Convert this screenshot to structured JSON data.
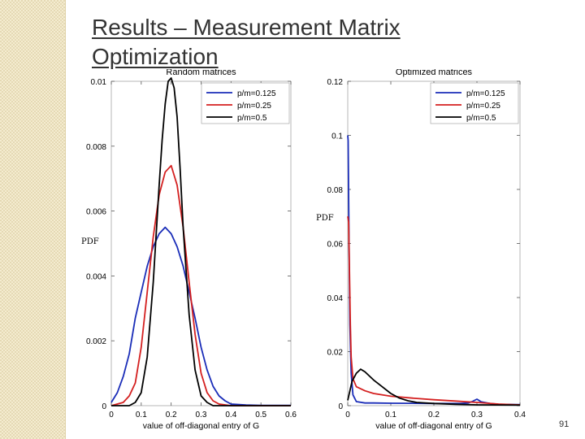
{
  "slide": {
    "title_line1": "Results – Measurement Matrix",
    "title_line2": "Optimization",
    "page_number": "91",
    "pdf_label_left": "PDF",
    "pdf_label_right": "PDF",
    "colors": {
      "sidebar": "#f4ecd0",
      "title": "#333333"
    }
  },
  "chart_data": [
    {
      "type": "line",
      "title": "Random matrices",
      "xlabel": "value of off-diagonal entry of G",
      "ylabel": "PDF",
      "xlim": [
        0,
        0.6
      ],
      "ylim": [
        0,
        0.01
      ],
      "xticks": [
        0,
        0.1,
        0.2,
        0.3,
        0.4,
        0.5,
        0.6
      ],
      "xtick_labels": [
        "0",
        "0.1",
        "0.2",
        "0.3",
        "0.4",
        "0.5",
        "0.6"
      ],
      "yticks": [
        0,
        0.002,
        0.004,
        0.006,
        0.008,
        0.01
      ],
      "ytick_labels": [
        "0",
        "0.002",
        "0.004",
        "0.006",
        "0.008",
        "0.01"
      ],
      "legend_position": "top-right",
      "series": [
        {
          "name": "p/m=0.125",
          "color": "#1a2db8",
          "x": [
            0,
            0.02,
            0.04,
            0.06,
            0.08,
            0.1,
            0.12,
            0.14,
            0.16,
            0.18,
            0.2,
            0.22,
            0.24,
            0.26,
            0.28,
            0.3,
            0.32,
            0.34,
            0.36,
            0.38,
            0.4,
            0.45,
            0.5,
            0.6
          ],
          "y": [
            0.0001,
            0.0004,
            0.0009,
            0.0016,
            0.0027,
            0.0035,
            0.0043,
            0.0049,
            0.0053,
            0.0055,
            0.0053,
            0.0049,
            0.0043,
            0.0035,
            0.0027,
            0.0018,
            0.0011,
            0.0006,
            0.0003,
            0.00015,
            5e-05,
            2e-05,
            1e-05,
            1e-05
          ]
        },
        {
          "name": "p/m=0.25",
          "color": "#d42020",
          "x": [
            0,
            0.04,
            0.06,
            0.08,
            0.1,
            0.12,
            0.14,
            0.16,
            0.18,
            0.2,
            0.22,
            0.24,
            0.26,
            0.28,
            0.3,
            0.32,
            0.34,
            0.36,
            0.4,
            0.5,
            0.6
          ],
          "y": [
            0,
            0.0001,
            0.0003,
            0.0007,
            0.0018,
            0.0035,
            0.0052,
            0.0065,
            0.0072,
            0.0074,
            0.0068,
            0.0055,
            0.0038,
            0.0022,
            0.001,
            0.0004,
            0.00015,
            5e-05,
            0,
            0,
            0
          ]
        },
        {
          "name": "p/m=0.5",
          "color": "#000000",
          "x": [
            0,
            0.06,
            0.08,
            0.1,
            0.12,
            0.14,
            0.16,
            0.17,
            0.18,
            0.19,
            0.2,
            0.21,
            0.22,
            0.23,
            0.24,
            0.26,
            0.28,
            0.3,
            0.32,
            0.34,
            0.4,
            0.6
          ],
          "y": [
            0,
            0,
            0.0001,
            0.0004,
            0.0015,
            0.0038,
            0.0068,
            0.0082,
            0.0093,
            0.01,
            0.0101,
            0.0098,
            0.0089,
            0.0073,
            0.0055,
            0.0028,
            0.0011,
            0.0003,
            0.0001,
            0,
            0,
            0
          ]
        }
      ]
    },
    {
      "type": "line",
      "title": "Optimized matrices",
      "xlabel": "value of off-diagonal entry of G",
      "ylabel": "PDF",
      "xlim": [
        0,
        0.4
      ],
      "ylim": [
        0,
        0.12
      ],
      "xticks": [
        0,
        0.1,
        0.2,
        0.3,
        0.4
      ],
      "xtick_labels": [
        "0",
        "0.1",
        "0.2",
        "0.3",
        "0.4"
      ],
      "yticks": [
        0,
        0.02,
        0.04,
        0.06,
        0.08,
        0.1,
        0.12
      ],
      "ytick_labels": [
        "0",
        "0.02",
        "0.04",
        "0.06",
        "0.08",
        "0.1",
        "0.12"
      ],
      "legend_position": "top-right",
      "series": [
        {
          "name": "p/m=0.125",
          "color": "#1a2db8",
          "x": [
            0,
            0.001,
            0.003,
            0.005,
            0.008,
            0.012,
            0.02,
            0.04,
            0.06,
            0.1,
            0.2,
            0.26,
            0.28,
            0.29,
            0.3,
            0.31,
            0.33,
            0.35,
            0.4
          ],
          "y": [
            0.1,
            0.098,
            0.06,
            0.03,
            0.012,
            0.004,
            0.0015,
            0.001,
            0.001,
            0.0009,
            0.0008,
            0.0008,
            0.001,
            0.0016,
            0.0024,
            0.0014,
            0.0008,
            0.0005,
            0.0004
          ]
        },
        {
          "name": "p/m=0.25",
          "color": "#d42020",
          "x": [
            0,
            0.002,
            0.004,
            0.006,
            0.008,
            0.012,
            0.02,
            0.04,
            0.06,
            0.1,
            0.15,
            0.2,
            0.25,
            0.3,
            0.35,
            0.4
          ],
          "y": [
            0.07,
            0.068,
            0.05,
            0.03,
            0.018,
            0.01,
            0.007,
            0.0055,
            0.0045,
            0.0035,
            0.0028,
            0.0022,
            0.0017,
            0.0012,
            0.0006,
            0.0003
          ]
        },
        {
          "name": "p/m=0.5",
          "color": "#000000",
          "x": [
            0,
            0.01,
            0.02,
            0.03,
            0.04,
            0.05,
            0.06,
            0.08,
            0.1,
            0.12,
            0.14,
            0.16,
            0.2,
            0.25,
            0.3,
            0.4
          ],
          "y": [
            0.002,
            0.009,
            0.012,
            0.0135,
            0.0125,
            0.011,
            0.0095,
            0.007,
            0.0045,
            0.0028,
            0.0018,
            0.0012,
            0.0008,
            0.0005,
            0.0003,
            0.0002
          ]
        }
      ]
    }
  ]
}
